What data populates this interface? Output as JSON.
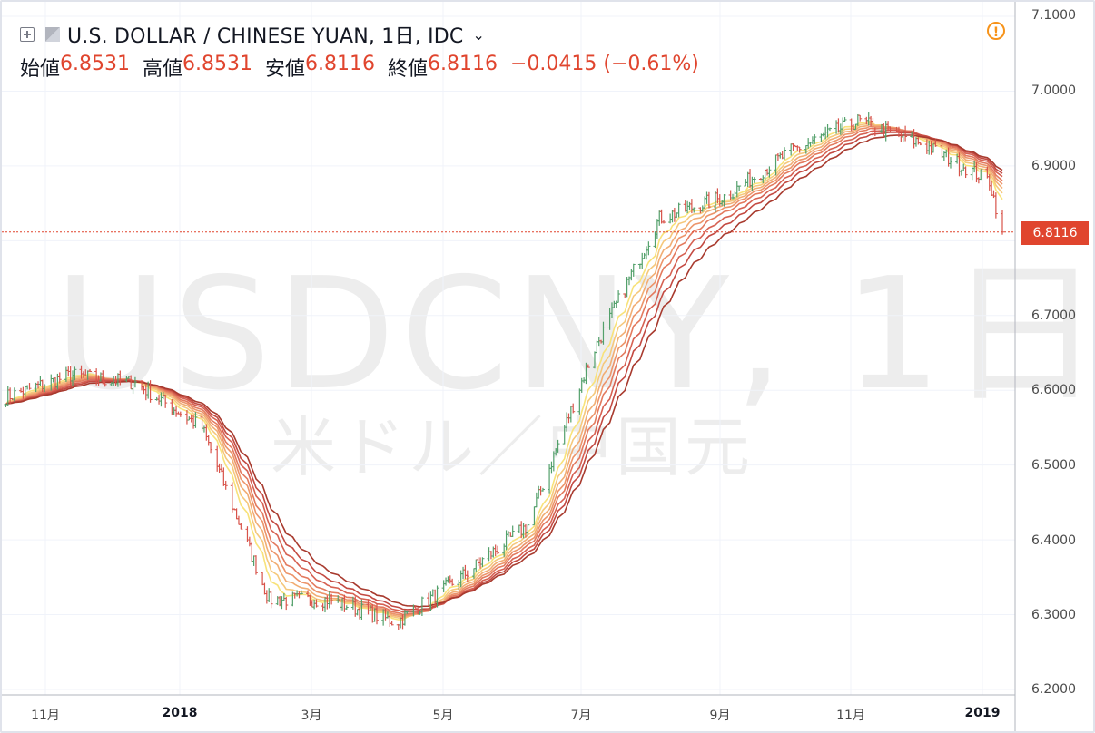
{
  "header": {
    "symbol_title": "U.S. DOLLAR / CHINESE YUAN, 1日, IDC",
    "ohlc": [
      {
        "label": "始値",
        "value": "6.8531"
      },
      {
        "label": "高値",
        "value": "6.8531"
      },
      {
        "label": "安値",
        "value": "6.8116"
      },
      {
        "label": "終値",
        "value": "6.8116"
      }
    ],
    "change": "−0.0415 (−0.61%)"
  },
  "watermark": {
    "symbol": "USDCNY, 1日",
    "name": "米ドル／中国元"
  },
  "price_tag": "6.8116",
  "icons": {
    "add": "plus-square-icon",
    "flag": "flag-icon",
    "chevron": "chevron-down-icon",
    "alert": "exclamation-circle-icon"
  },
  "colors": {
    "up": "#53a06b",
    "down": "#d8534a",
    "accent": "#e0452e",
    "warning": "#f7931a"
  },
  "chart_data": {
    "type": "line",
    "y_axis": {
      "range": [
        6.2,
        7.1
      ],
      "ticks": [
        "7.1000",
        "7.0000",
        "6.9000",
        "6.8116",
        "6.7000",
        "6.6000",
        "6.5000",
        "6.4000",
        "6.3000",
        "6.2000"
      ]
    },
    "x_axis": {
      "labels": [
        "11月",
        "2018",
        "3月",
        "5月",
        "7月",
        "9月",
        "11月",
        "2019"
      ]
    },
    "price_series": {
      "name": "",
      "dates": [
        "2017-10-01",
        "2017-11-01",
        "2017-12-01",
        "2018-01-01",
        "2018-02-01",
        "2018-03-01",
        "2018-04-01",
        "2018-05-01",
        "2018-06-01",
        "2018-07-01",
        "2018-08-01",
        "2018-09-01",
        "2018-10-01",
        "2018-11-01",
        "2018-12-01",
        "2019-01-01",
        "2019-01-07"
      ],
      "close": [
        6.59,
        6.62,
        6.61,
        6.55,
        6.32,
        6.32,
        6.29,
        6.35,
        6.42,
        6.65,
        6.83,
        6.86,
        6.92,
        6.96,
        6.93,
        6.88,
        6.8116
      ]
    },
    "ribbon_series_count": 8,
    "ribbon_colors": [
      "#f8e27a",
      "#f5c87c",
      "#f1ad74",
      "#ec946a",
      "#e37a5e",
      "#d66152",
      "#c34a42",
      "#a83a2e"
    ]
  }
}
